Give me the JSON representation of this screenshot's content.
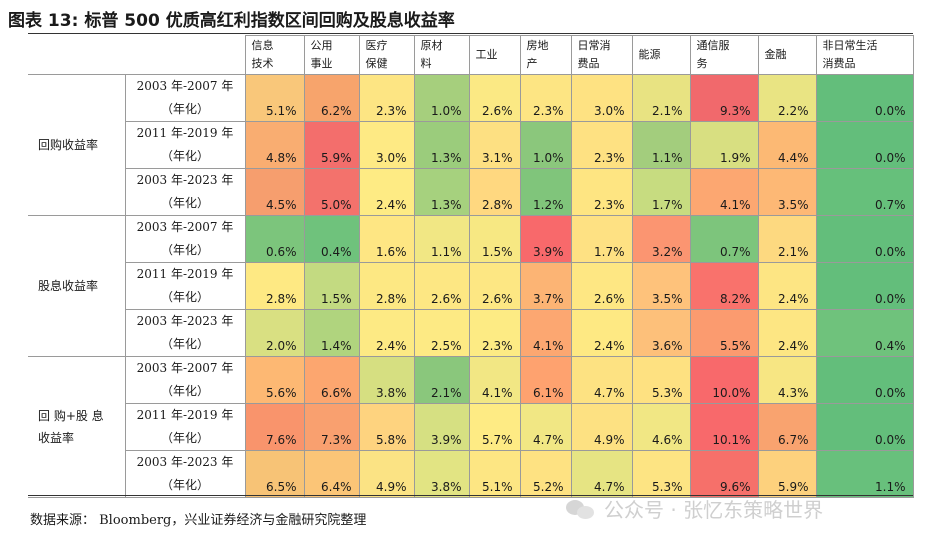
{
  "title": {
    "number": "图表 13:",
    "text": "标普 500 优质高红利指数区间回购及股息收益率"
  },
  "headers": [
    "信息技术",
    "公用事业",
    "医疗保健",
    "原材料",
    "工业",
    "房地产",
    "日常消费品",
    "能源",
    "通信服务",
    "金融",
    "非日常生活消费品"
  ],
  "header_lines": [
    [
      "信息",
      "技术"
    ],
    [
      "公用",
      "事业"
    ],
    [
      "医疗",
      "保健"
    ],
    [
      "原材",
      "料"
    ],
    [
      "工业"
    ],
    [
      "房地",
      "产"
    ],
    [
      "日常消",
      "费品"
    ],
    [
      "能源"
    ],
    [
      "通信服",
      "务"
    ],
    [
      "金融"
    ],
    [
      "非日常生活",
      "消费品"
    ]
  ],
  "groups": [
    {
      "label": "回购收益率",
      "label_lines": [
        "回购收益率"
      ],
      "rows": [
        {
          "period": [
            "2003 年-2007 年",
            "（年化）"
          ],
          "values": [
            "5.1%",
            "6.2%",
            "2.3%",
            "1.0%",
            "2.6%",
            "2.3%",
            "3.0%",
            "2.1%",
            "9.3%",
            "2.2%",
            "0.0%"
          ]
        },
        {
          "period": [
            "2011 年-2019 年",
            "（年化）"
          ],
          "values": [
            "4.8%",
            "5.9%",
            "3.0%",
            "1.3%",
            "3.1%",
            "1.0%",
            "2.3%",
            "1.1%",
            "1.9%",
            "4.4%",
            "0.0%"
          ]
        },
        {
          "period": [
            "2003 年-2023 年",
            "（年化）"
          ],
          "values": [
            "4.5%",
            "5.0%",
            "2.4%",
            "1.3%",
            "2.8%",
            "1.2%",
            "2.3%",
            "1.7%",
            "4.1%",
            "3.5%",
            "0.7%"
          ]
        }
      ]
    },
    {
      "label": "股息收益率",
      "label_lines": [
        "股息收益率"
      ],
      "rows": [
        {
          "period": [
            "2003 年-2007 年",
            "（年化）"
          ],
          "values": [
            "0.6%",
            "0.4%",
            "1.6%",
            "1.1%",
            "1.5%",
            "3.9%",
            "1.7%",
            "3.2%",
            "0.7%",
            "2.1%",
            "0.0%"
          ]
        },
        {
          "period": [
            "2011 年-2019 年",
            "（年化）"
          ],
          "values": [
            "2.8%",
            "1.5%",
            "2.8%",
            "2.6%",
            "2.6%",
            "3.7%",
            "2.6%",
            "3.5%",
            "8.2%",
            "2.4%",
            "0.0%"
          ]
        },
        {
          "period": [
            "2003 年-2023 年",
            "（年化）"
          ],
          "values": [
            "2.0%",
            "1.4%",
            "2.4%",
            "2.5%",
            "2.3%",
            "4.1%",
            "2.4%",
            "3.6%",
            "5.5%",
            "2.4%",
            "0.4%"
          ]
        }
      ]
    },
    {
      "label": "回购+股息收益率",
      "label_lines": [
        "回 购+股 息",
        "收益率"
      ],
      "rows": [
        {
          "period": [
            "2003 年-2007 年",
            "（年化）"
          ],
          "values": [
            "5.6%",
            "6.6%",
            "3.8%",
            "2.1%",
            "4.1%",
            "6.1%",
            "4.7%",
            "5.3%",
            "10.0%",
            "4.3%",
            "0.0%"
          ]
        },
        {
          "period": [
            "2011 年-2019 年",
            "（年化）"
          ],
          "values": [
            "7.6%",
            "7.3%",
            "5.8%",
            "3.9%",
            "5.7%",
            "4.7%",
            "4.9%",
            "4.6%",
            "10.1%",
            "6.7%",
            "0.0%"
          ]
        },
        {
          "period": [
            "2003 年-2023 年",
            "（年化）"
          ],
          "values": [
            "6.5%",
            "6.4%",
            "4.9%",
            "3.8%",
            "5.1%",
            "5.2%",
            "4.7%",
            "5.3%",
            "9.6%",
            "5.9%",
            "1.1%"
          ]
        }
      ]
    }
  ],
  "cell_colors": [
    [
      "#f9c77a",
      "#f7a46c",
      "#fde583",
      "#a6cf7d",
      "#fbe984",
      "#fde583",
      "#fee282",
      "#e8e382",
      "#f1696c",
      "#e9e483",
      "#63be7b"
    ],
    [
      "#f9ad71",
      "#f36e6c",
      "#feea84",
      "#9bcc7c",
      "#fde082",
      "#8bc77c",
      "#fee182",
      "#a3cd7d",
      "#d8df81",
      "#fcb974",
      "#63be7b"
    ],
    [
      "#f69e6e",
      "#f3726c",
      "#feeb84",
      "#a6d17e",
      "#ffd880",
      "#80c57b",
      "#fee582",
      "#c7dc80",
      "#fca771",
      "#fdb875",
      "#66c07b"
    ],
    [
      "#7cc57c",
      "#6fc27c",
      "#fee683",
      "#f1e784",
      "#f7e883",
      "#f8696b",
      "#fee183",
      "#fb9571",
      "#7dc57c",
      "#fdd980",
      "#63be7b"
    ],
    [
      "#fee983",
      "#c3da81",
      "#fde883",
      "#fde783",
      "#fde783",
      "#fcb474",
      "#fee783",
      "#fec27b",
      "#f9726c",
      "#fde583",
      "#63be7b"
    ],
    [
      "#d9e082",
      "#b0d47e",
      "#fdea84",
      "#fdea84",
      "#fdeb84",
      "#fca771",
      "#fee983",
      "#fdc07a",
      "#fb9b6f",
      "#fde683",
      "#6fc27c"
    ],
    [
      "#fdb873",
      "#fca66f",
      "#d6df81",
      "#8ac77c",
      "#f2e784",
      "#fea26f",
      "#fde282",
      "#fee181",
      "#f8696b",
      "#f7e683",
      "#63be7b"
    ],
    [
      "#f9946c",
      "#f9a06f",
      "#fed37f",
      "#d6e082",
      "#feeb84",
      "#f1e784",
      "#fde182",
      "#f1e784",
      "#f8696b",
      "#f9a36f",
      "#63be7b"
    ],
    [
      "#f7c376",
      "#fbc577",
      "#fbe384",
      "#e2e483",
      "#fde683",
      "#fee282",
      "#e6e483",
      "#fde483",
      "#f6706a",
      "#fdd17d",
      "#68c07c"
    ]
  ],
  "source": "数据来源： Bloomberg，兴业证券经济与金融研究院整理",
  "watermark": "公众号 · 张忆东策略世界"
}
